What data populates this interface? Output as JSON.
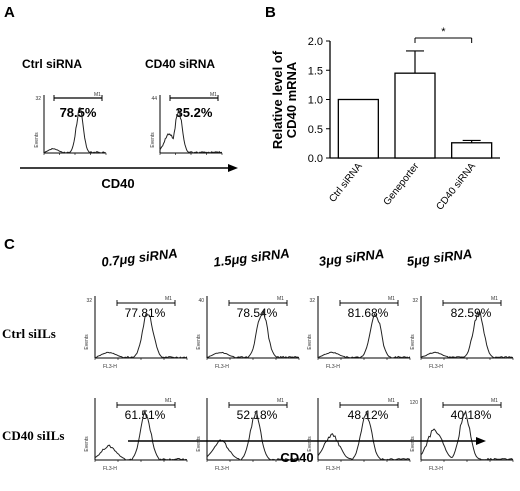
{
  "panels": {
    "a": {
      "letter": "A",
      "histograms": [
        {
          "label": "Ctrl siRNA",
          "percent": "78.5%",
          "marker": "M1",
          "ymax_label": "32",
          "y_label": "Events",
          "peak_log": 2.3
        },
        {
          "label": "CD40 siRNA",
          "percent": "35.2%",
          "marker": "M1",
          "ymax_label": "44",
          "y_label": "Events",
          "peak_log": 1.2
        }
      ],
      "axis_label": "CD40"
    },
    "b": {
      "letter": "B",
      "ylabel_line1": "Relative level of",
      "ylabel_line2": "CD40 mRNA",
      "significance": "*"
    },
    "c": {
      "letter": "C",
      "conditions": [
        "0.7μg siRNA",
        "1.5μg siRNA",
        "3μg siRNA",
        "5μg siRNA"
      ],
      "rows": [
        {
          "label": "Ctrl siILs",
          "percents": [
            "77.81%",
            "78.54%",
            "81.68%",
            "82.59%"
          ],
          "ymax_labels": [
            "32",
            "40",
            "32",
            "32"
          ],
          "peaks": [
            2.3,
            2.4,
            2.5,
            2.5
          ]
        },
        {
          "label": "CD40 siILs",
          "percents": [
            "61.51%",
            "52.18%",
            "48.12%",
            "40.18%"
          ],
          "ymax_labels": [
            "",
            "",
            "",
            "120"
          ],
          "peaks": [
            2.2,
            2.1,
            2.1,
            1.9
          ]
        }
      ],
      "marker": "M1",
      "y_label": "Events",
      "x_label": "FL3-H",
      "axis_label": "CD40"
    }
  },
  "chart_data": {
    "type": "bar",
    "categories": [
      "Ctrl siRNA",
      "Geneporter",
      "CD40 siRNA"
    ],
    "values": [
      1.0,
      1.45,
      0.26
    ],
    "errors": [
      0.0,
      0.38,
      0.04
    ],
    "xlabel": "",
    "ylabel": "Relative level of CD40 mRNA",
    "ylim": [
      0,
      2.0
    ],
    "yticks": [
      "0.0",
      "0.5",
      "1.0",
      "1.5",
      "2.0"
    ],
    "annotation": "*"
  }
}
